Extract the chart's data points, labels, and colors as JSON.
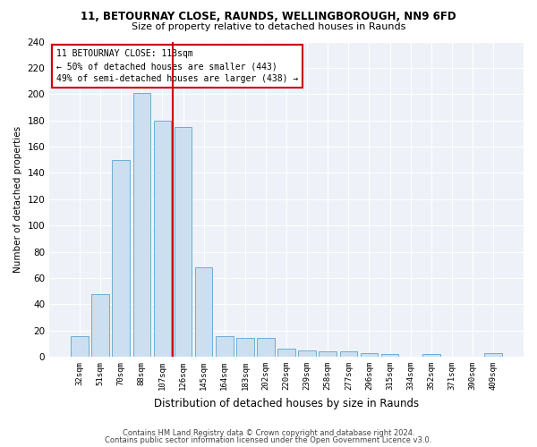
{
  "title1": "11, BETOURNAY CLOSE, RAUNDS, WELLINGBOROUGH, NN9 6FD",
  "title2": "Size of property relative to detached houses in Raunds",
  "xlabel": "Distribution of detached houses by size in Raunds",
  "ylabel": "Number of detached properties",
  "categories": [
    "32sqm",
    "51sqm",
    "70sqm",
    "88sqm",
    "107sqm",
    "126sqm",
    "145sqm",
    "164sqm",
    "183sqm",
    "202sqm",
    "220sqm",
    "239sqm",
    "258sqm",
    "277sqm",
    "296sqm",
    "315sqm",
    "334sqm",
    "352sqm",
    "371sqm",
    "390sqm",
    "409sqm"
  ],
  "values": [
    16,
    48,
    150,
    201,
    180,
    175,
    68,
    16,
    14,
    14,
    6,
    5,
    4,
    4,
    3,
    2,
    0,
    2,
    0,
    0,
    3
  ],
  "bar_color": "#ccdff0",
  "bar_edge_color": "#6baed6",
  "vline_color": "#cc0000",
  "vline_pos": 4.5,
  "annotation_line1": "11 BETOURNAY CLOSE: 113sqm",
  "annotation_line2": "← 50% of detached houses are smaller (443)",
  "annotation_line3": "49% of semi-detached houses are larger (438) →",
  "annotation_box_color": "#cc0000",
  "ylim": [
    0,
    240
  ],
  "yticks": [
    0,
    20,
    40,
    60,
    80,
    100,
    120,
    140,
    160,
    180,
    200,
    220,
    240
  ],
  "footer1": "Contains HM Land Registry data © Crown copyright and database right 2024.",
  "footer2": "Contains public sector information licensed under the Open Government Licence v3.0.",
  "bg_color": "#eef2f8"
}
